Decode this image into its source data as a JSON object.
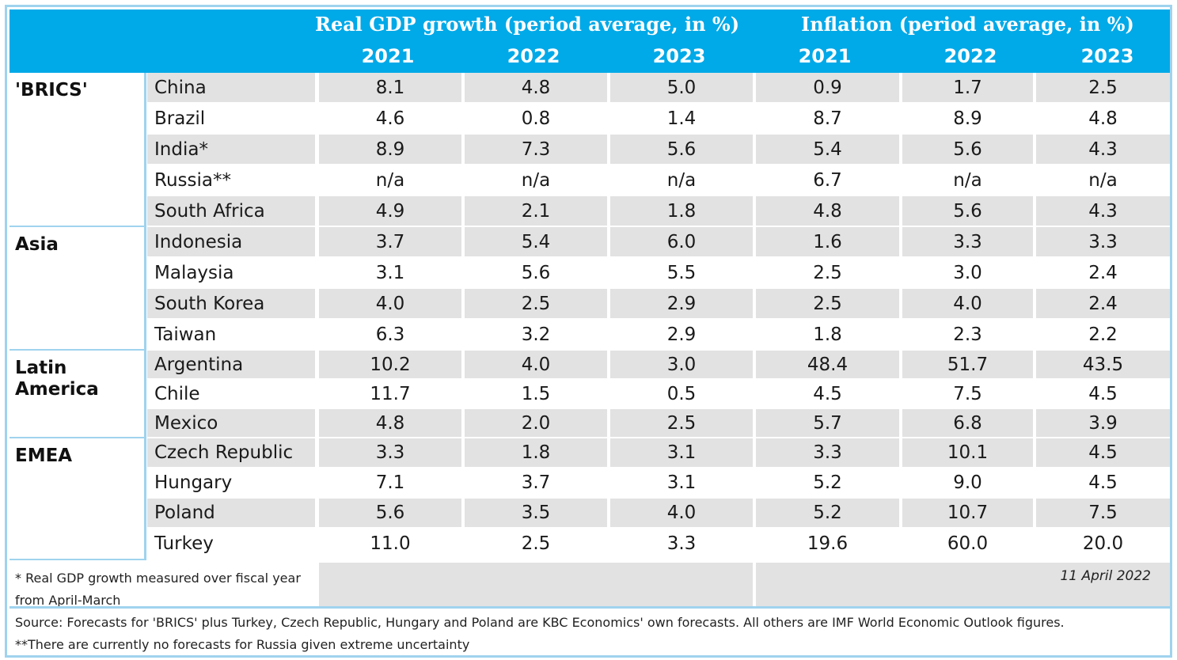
{
  "header": {
    "gdp_title": "Real GDP growth (period average, in %)",
    "infl_title": "Inflation (period average, in %)",
    "years": [
      "2021",
      "2022",
      "2023",
      "2021",
      "2022",
      "2023"
    ]
  },
  "groups": [
    {
      "name": "'BRICS'",
      "rows": [
        {
          "country": "China",
          "values": [
            "8.1",
            "4.8",
            "5.0",
            "0.9",
            "1.7",
            "2.5"
          ]
        },
        {
          "country": "Brazil",
          "values": [
            "4.6",
            "0.8",
            "1.4",
            "8.7",
            "8.9",
            "4.8"
          ]
        },
        {
          "country": "India*",
          "values": [
            "8.9",
            "7.3",
            "5.6",
            "5.4",
            "5.6",
            "4.3"
          ]
        },
        {
          "country": "Russia**",
          "values": [
            "n/a",
            "n/a",
            "n/a",
            "6.7",
            "n/a",
            "n/a"
          ]
        },
        {
          "country": "South Africa",
          "values": [
            "4.9",
            "2.1",
            "1.8",
            "4.8",
            "5.6",
            "4.3"
          ]
        }
      ]
    },
    {
      "name": "Asia",
      "rows": [
        {
          "country": "Indonesia",
          "values": [
            "3.7",
            "5.4",
            "6.0",
            "1.6",
            "3.3",
            "3.3"
          ]
        },
        {
          "country": "Malaysia",
          "values": [
            "3.1",
            "5.6",
            "5.5",
            "2.5",
            "3.0",
            "2.4"
          ]
        },
        {
          "country": "South Korea",
          "values": [
            "4.0",
            "2.5",
            "2.9",
            "2.5",
            "4.0",
            "2.4"
          ]
        },
        {
          "country": "Taiwan",
          "values": [
            "6.3",
            "3.2",
            "2.9",
            "1.8",
            "2.3",
            "2.2"
          ]
        }
      ]
    },
    {
      "name": "Latin America",
      "rows": [
        {
          "country": "Argentina",
          "values": [
            "10.2",
            "4.0",
            "3.0",
            "48.4",
            "51.7",
            "43.5"
          ]
        },
        {
          "country": "Chile",
          "values": [
            "11.7",
            "1.5",
            "0.5",
            "4.5",
            "7.5",
            "4.5"
          ]
        },
        {
          "country": "Mexico",
          "values": [
            "4.8",
            "2.0",
            "2.5",
            "5.7",
            "6.8",
            "3.9"
          ]
        }
      ]
    },
    {
      "name": "EMEA",
      "rows": [
        {
          "country": "Czech Republic",
          "values": [
            "3.3",
            "1.8",
            "3.1",
            "3.3",
            "10.1",
            "4.5"
          ]
        },
        {
          "country": "Hungary",
          "values": [
            "7.1",
            "3.7",
            "3.1",
            "5.2",
            "9.0",
            "4.5"
          ]
        },
        {
          "country": "Poland",
          "values": [
            "5.6",
            "3.5",
            "4.0",
            "5.2",
            "10.7",
            "7.5"
          ]
        },
        {
          "country": "Turkey",
          "values": [
            "11.0",
            "2.5",
            "3.3",
            "19.6",
            "60.0",
            "20.0"
          ]
        }
      ]
    }
  ],
  "footnote_fiscal": "* Real GDP growth measured over fiscal year from April-March",
  "date": "11 April 2022",
  "source_line": "Source: Forecasts for 'BRICS' plus Turkey, Czech Republic, Hungary and Poland are KBC Economics' own forecasts. All others are IMF World Economic Outlook figures.",
  "russia_note": "**There are currently no forecasts for Russia given extreme uncertainty",
  "colors": {
    "header_bg": "#00a9e8",
    "stripe": "#e2e2e2",
    "border": "#9fd3ee"
  }
}
